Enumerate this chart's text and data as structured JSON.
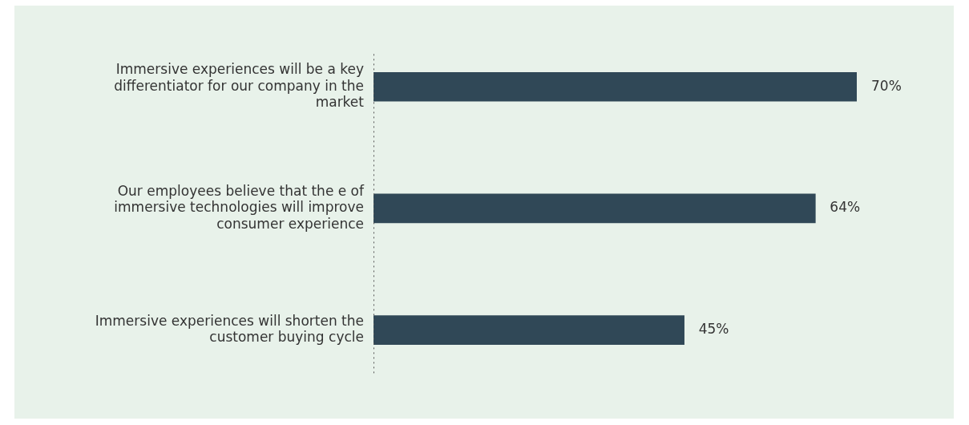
{
  "chart_data": {
    "type": "bar",
    "orientation": "horizontal",
    "categories": [
      "Immersive experiences will be a key differentiator for our company in the market",
      "Our employees believe that the e of immersive technologies will improve consumer experience",
      "Immersive experiences will shorten the customer buying cycle"
    ],
    "values": [
      70,
      64,
      45
    ],
    "color": "#304857",
    "value_labels": [
      "70%",
      "64%",
      "45%"
    ],
    "legend": false
  }
}
